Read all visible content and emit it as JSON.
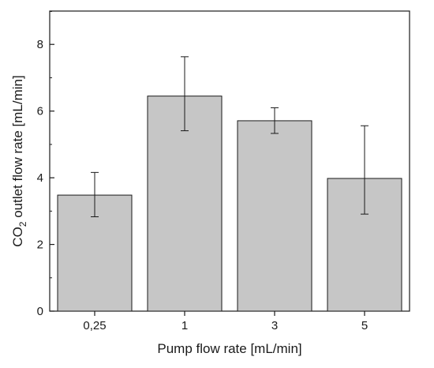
{
  "chart_data": {
    "type": "bar",
    "categories": [
      "0,25",
      "1",
      "3",
      "5"
    ],
    "values": [
      3.48,
      6.45,
      5.71,
      3.98
    ],
    "error_low": [
      2.83,
      5.41,
      5.33,
      2.91
    ],
    "error_high": [
      4.16,
      7.63,
      6.1,
      5.56
    ],
    "title": "",
    "xlabel": "Pump flow rate [mL/min]",
    "ylabel_prefix": "CO",
    "ylabel_subscript": "2",
    "ylabel_suffix": " outlet flow rate [mL/min]",
    "ylim": [
      0,
      9
    ],
    "yticks": [
      "0",
      "2",
      "4",
      "6",
      "8"
    ],
    "ytick_values": [
      0,
      2,
      4,
      6,
      8
    ],
    "grid": false,
    "legend": "none",
    "bar_color": "#c6c6c6",
    "bar_edge_color": "#1a1a1a"
  }
}
